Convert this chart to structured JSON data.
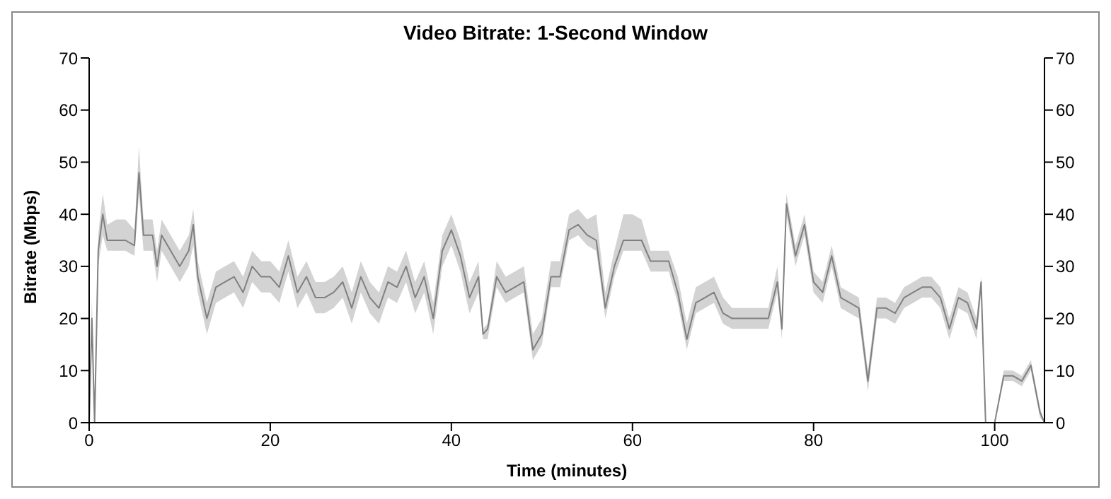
{
  "chart_data": {
    "type": "line",
    "title": "Video Bitrate: 1-Second Window",
    "xlabel": "Time (minutes)",
    "ylabel": "Bitrate (Mbps)",
    "x": [
      0,
      0.3,
      0.6,
      1,
      1.5,
      2,
      3,
      4,
      5,
      5.5,
      6,
      7,
      7.5,
      8,
      9,
      10,
      11,
      11.5,
      12,
      13,
      14,
      15,
      16,
      17,
      18,
      19,
      20,
      21,
      22,
      23,
      24,
      25,
      26,
      27,
      28,
      29,
      30,
      31,
      32,
      33,
      34,
      35,
      36,
      37,
      38,
      39,
      40,
      41,
      42,
      43,
      43.5,
      44,
      45,
      46,
      47,
      48,
      49,
      50,
      51,
      52,
      53,
      54,
      55,
      56,
      57,
      58,
      59,
      60,
      61,
      62,
      63,
      64,
      65,
      66,
      67,
      68,
      69,
      70,
      71,
      72,
      73,
      74,
      75,
      76,
      76.5,
      77,
      78,
      79,
      80,
      81,
      82,
      83,
      84,
      85,
      86,
      87,
      88,
      89,
      90,
      91,
      92,
      93,
      94,
      95,
      96,
      97,
      98,
      98.5,
      99,
      100,
      101,
      102,
      103,
      104,
      105,
      105.5
    ],
    "series": [
      {
        "color": "#808080",
        "values": [
          0,
          20,
          0,
          33,
          40,
          35,
          35,
          35,
          34,
          48,
          36,
          36,
          30,
          36,
          33,
          30,
          33,
          38,
          28,
          20,
          26,
          27,
          28,
          25,
          30,
          28,
          28,
          26,
          32,
          25,
          28,
          24,
          24,
          25,
          27,
          22,
          28,
          24,
          22,
          27,
          26,
          30,
          24,
          28,
          20,
          33,
          37,
          32,
          24,
          28,
          17,
          18,
          28,
          25,
          26,
          27,
          14,
          17,
          28,
          28,
          37,
          38,
          36,
          35,
          22,
          30,
          35,
          35,
          35,
          31,
          31,
          31,
          25,
          16,
          23,
          24,
          25,
          21,
          20,
          20,
          20,
          20,
          20,
          27,
          18,
          42,
          32,
          38,
          27,
          25,
          32,
          24,
          23,
          22,
          8,
          22,
          22,
          21,
          24,
          25,
          26,
          26,
          24,
          18,
          24,
          23,
          18,
          27,
          0,
          0,
          9,
          9,
          8,
          11,
          2,
          0
        ],
        "lower": [
          0,
          18,
          0,
          30,
          36,
          33,
          33,
          33,
          32,
          44,
          33,
          33,
          27,
          33,
          30,
          27,
          30,
          34,
          25,
          17,
          23,
          24,
          25,
          22,
          27,
          25,
          25,
          23,
          29,
          22,
          25,
          21,
          21,
          22,
          24,
          19,
          25,
          21,
          19,
          24,
          23,
          27,
          21,
          25,
          17,
          30,
          34,
          29,
          21,
          25,
          16,
          16,
          26,
          23,
          24,
          25,
          12,
          15,
          26,
          26,
          35,
          36,
          34,
          33,
          20,
          28,
          33,
          33,
          33,
          29,
          29,
          29,
          23,
          14,
          21,
          22,
          23,
          19,
          18,
          18,
          18,
          18,
          18,
          25,
          16,
          40,
          30,
          36,
          25,
          23,
          30,
          22,
          21,
          20,
          6,
          20,
          20,
          19,
          22,
          23,
          24,
          24,
          22,
          16,
          22,
          21,
          16,
          25,
          0,
          0,
          8,
          8,
          7,
          10,
          1,
          0
        ],
        "upper": [
          0,
          24,
          0,
          36,
          44,
          38,
          39,
          39,
          37,
          53,
          39,
          39,
          33,
          39,
          36,
          33,
          36,
          41,
          31,
          23,
          29,
          30,
          31,
          28,
          33,
          31,
          31,
          29,
          35,
          28,
          31,
          27,
          27,
          28,
          30,
          25,
          31,
          27,
          25,
          30,
          29,
          33,
          27,
          31,
          23,
          36,
          40,
          35,
          27,
          31,
          18,
          19,
          31,
          28,
          29,
          30,
          17,
          20,
          31,
          31,
          40,
          41,
          39,
          40,
          25,
          33,
          40,
          40,
          39,
          33,
          33,
          33,
          28,
          19,
          26,
          27,
          28,
          24,
          22,
          22,
          22,
          22,
          22,
          30,
          20,
          44,
          34,
          40,
          29,
          27,
          34,
          26,
          25,
          24,
          10,
          24,
          24,
          23,
          26,
          27,
          28,
          28,
          26,
          20,
          26,
          25,
          20,
          28,
          0,
          0,
          10,
          10,
          9,
          12,
          3,
          0
        ]
      }
    ],
    "xlim": [
      0,
      105.5
    ],
    "xticks": [
      0,
      20,
      40,
      60,
      80,
      100
    ],
    "ylim": [
      0,
      70
    ],
    "yticks": [
      0,
      10,
      20,
      30,
      40,
      50,
      60,
      70
    ],
    "y2lim": [
      0,
      70
    ],
    "y2ticks": [
      0,
      10,
      20,
      30,
      40,
      50,
      60,
      70
    ],
    "grid": false,
    "legend": false,
    "marker": "none",
    "line_style": "solid"
  }
}
